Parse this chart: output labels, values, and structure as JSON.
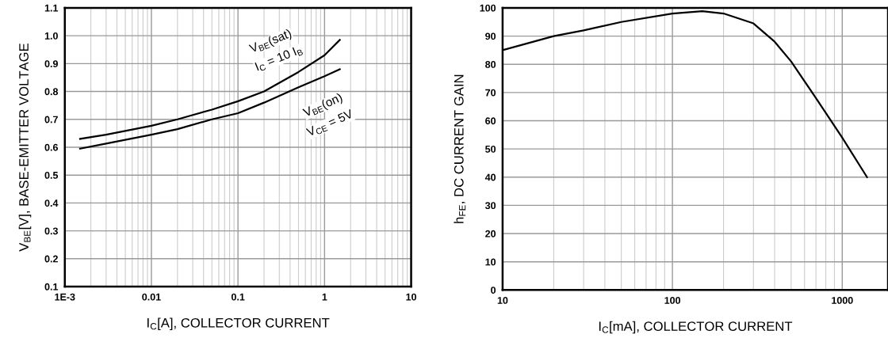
{
  "chart_data": [
    {
      "type": "line",
      "log": "x",
      "grid": true,
      "xlabel": "I$_{C}$[A], COLLECTOR CURRENT",
      "ylabel": "V$_{BE}$[V], BASE-EMITTER VOLTAGE",
      "xlim": [
        0.001,
        10
      ],
      "ylim": [
        0.1,
        1.1
      ],
      "xticks": [
        {
          "value": 0.001,
          "label": "1E-3"
        },
        0.01,
        0.1,
        1,
        10
      ],
      "yticks": [
        0.1,
        0.2,
        0.3,
        0.4,
        0.5,
        0.6,
        0.7,
        0.8,
        0.9,
        {
          "value": 1.0,
          "label": "1.0"
        },
        1.1
      ],
      "annotations": [
        "V$_{BE}$(sat)",
        "I$_{C}$ = 10 I$_{B}$",
        "V$_{BE}$(on)",
        "V$_{CE}$ = 5V"
      ],
      "series": [
        {
          "color": "#000000",
          "x": [
            0.0015,
            0.003,
            0.01,
            0.02,
            0.05,
            0.1,
            0.2,
            0.5,
            1,
            1.5
          ],
          "values": [
            0.63,
            0.645,
            0.677,
            0.7,
            0.735,
            0.765,
            0.8,
            0.87,
            0.93,
            0.985
          ]
        },
        {
          "color": "#000000",
          "x": [
            0.0015,
            0.003,
            0.01,
            0.02,
            0.05,
            0.1,
            0.2,
            0.5,
            1,
            1.5
          ],
          "values": [
            0.595,
            0.613,
            0.645,
            0.665,
            0.7,
            0.722,
            0.76,
            0.815,
            0.855,
            0.88
          ]
        }
      ]
    },
    {
      "type": "line",
      "log": "x",
      "grid": true,
      "xlabel": "I$_{C}$[mA], COLLECTOR CURRENT",
      "ylabel": "h$_{FE}$, DC CURRENT GAIN",
      "xlim": [
        10,
        1860
      ],
      "ylim": [
        0,
        100
      ],
      "xticks": [
        10,
        100,
        1000
      ],
      "yticks": [
        0,
        10,
        20,
        30,
        40,
        50,
        60,
        70,
        80,
        90,
        100
      ],
      "series": [
        {
          "color": "#000000",
          "x": [
            10,
            20,
            30,
            50,
            100,
            150,
            200,
            300,
            400,
            500,
            700,
            1000,
            1400
          ],
          "values": [
            85,
            90,
            92,
            95,
            98,
            98.8,
            98,
            94.5,
            88,
            81,
            68,
            54,
            40
          ]
        }
      ]
    }
  ]
}
